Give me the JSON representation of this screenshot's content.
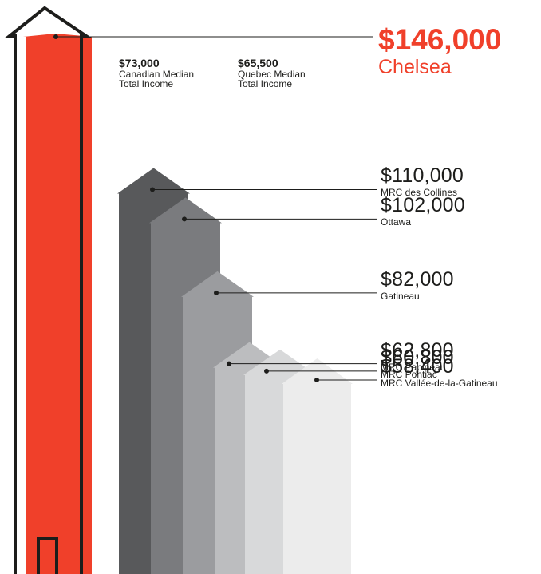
{
  "chart_data": {
    "type": "bar",
    "unit": "$",
    "highlight": {
      "category": "Chelsea",
      "value": 146000,
      "value_label": "$146,000",
      "color": "#f0402a"
    },
    "reference_values": [
      {
        "value": 73000,
        "value_label": "$73,000",
        "label": "Canadian Median Total Income"
      },
      {
        "value": 65500,
        "value_label": "$65,500",
        "label": "Quebec Median Total Income"
      }
    ],
    "categories": [
      "MRC des Collines",
      "Ottawa",
      "Gatineau",
      "MRC Papineau",
      "MRC Pontiac",
      "MRC Vallée-de-la-Gatineau"
    ],
    "values": [
      110000,
      102000,
      82000,
      62800,
      60800,
      58400
    ],
    "value_labels": [
      "$110,000",
      "$102,000",
      "$82,000",
      "$62,800",
      "$60,800",
      "$58,400"
    ],
    "colors": [
      "#58595b",
      "#7a7b7e",
      "#9b9c9f",
      "#bcbdbf",
      "#d8d9da",
      "#ececec"
    ],
    "ylim": [
      0,
      146000
    ]
  }
}
